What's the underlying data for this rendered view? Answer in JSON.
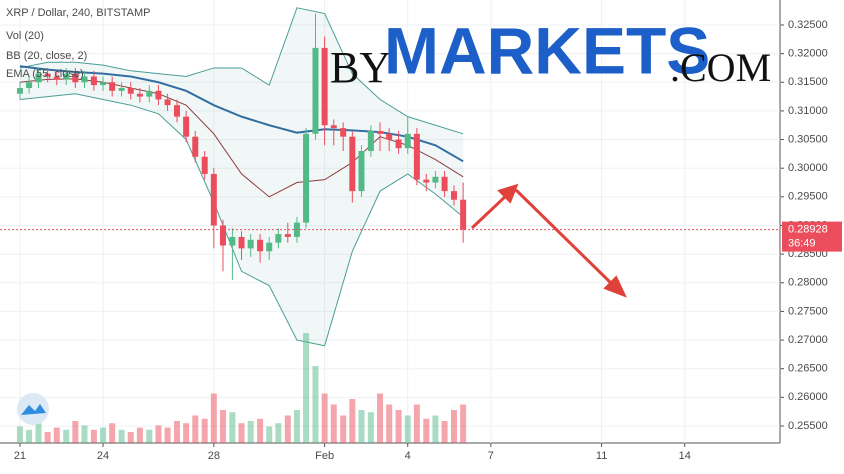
{
  "chart_data": {
    "type": "candlestick",
    "title": "XRP / Dollar, 240, BITSTAMP",
    "watermark": {
      "by": "BY",
      "name": "MARKETS",
      "domain": ".COM"
    },
    "xlim": [
      -0.72,
      27.44
    ],
    "xticks": [
      {
        "value": 0,
        "label": "21"
      },
      {
        "value": 3,
        "label": "24"
      },
      {
        "value": 7,
        "label": "28"
      },
      {
        "value": 11,
        "label": "Feb"
      },
      {
        "value": 14,
        "label": "4"
      },
      {
        "value": 17,
        "label": "7"
      },
      {
        "value": 21,
        "label": "11"
      },
      {
        "value": 24,
        "label": "14"
      }
    ],
    "ylim": [
      0.25203,
      0.32936
    ],
    "yticks": [
      {
        "value": 0.255,
        "label": "0.25500"
      },
      {
        "value": 0.26,
        "label": "0.26000"
      },
      {
        "value": 0.265,
        "label": "0.26500"
      },
      {
        "value": 0.27,
        "label": "0.27000"
      },
      {
        "value": 0.275,
        "label": "0.27500"
      },
      {
        "value": 0.28,
        "label": "0.28000"
      },
      {
        "value": 0.285,
        "label": "0.28500"
      },
      {
        "value": 0.29,
        "label": "0.29000"
      },
      {
        "value": 0.295,
        "label": "0.29500"
      },
      {
        "value": 0.3,
        "label": "0.30000"
      },
      {
        "value": 0.305,
        "label": "0.30500"
      },
      {
        "value": 0.31,
        "label": "0.31000"
      },
      {
        "value": 0.315,
        "label": "0.31500"
      },
      {
        "value": 0.32,
        "label": "0.32000"
      },
      {
        "value": 0.325,
        "label": "0.32500"
      }
    ],
    "grid": true,
    "up_color": "#53b987",
    "down_color": "#eb4d5c",
    "last_price": 0.28928,
    "countdown": "36:49",
    "candles": {
      "x": [
        0,
        0.33,
        0.67,
        1,
        1.33,
        1.67,
        2,
        2.33,
        2.67,
        3,
        3.33,
        3.67,
        4,
        4.33,
        4.67,
        5,
        5.33,
        5.67,
        6,
        6.33,
        6.67,
        7,
        7.33,
        7.67,
        8,
        8.33,
        8.67,
        9,
        9.33,
        9.67,
        10,
        10.33,
        10.67,
        11,
        11.33,
        11.67,
        12,
        12.33,
        12.67,
        13,
        13.33,
        13.67,
        14,
        14.33,
        14.67,
        15,
        15.33,
        15.67,
        16
      ],
      "open": [
        0.313,
        0.314,
        0.315,
        0.3165,
        0.316,
        0.3155,
        0.3165,
        0.315,
        0.316,
        0.3145,
        0.315,
        0.3135,
        0.314,
        0.313,
        0.3125,
        0.3135,
        0.312,
        0.311,
        0.309,
        0.3055,
        0.302,
        0.299,
        0.29,
        0.2865,
        0.288,
        0.286,
        0.2875,
        0.2855,
        0.287,
        0.2885,
        0.288,
        0.2905,
        0.306,
        0.321,
        0.3075,
        0.307,
        0.3055,
        0.296,
        0.303,
        0.3065,
        0.306,
        0.305,
        0.3035,
        0.306,
        0.298,
        0.2975,
        0.2985,
        0.296,
        0.2945
      ],
      "high": [
        0.315,
        0.316,
        0.3175,
        0.3175,
        0.317,
        0.3175,
        0.3175,
        0.317,
        0.317,
        0.316,
        0.316,
        0.315,
        0.315,
        0.314,
        0.3145,
        0.3145,
        0.313,
        0.312,
        0.31,
        0.3065,
        0.303,
        0.3,
        0.291,
        0.2895,
        0.289,
        0.2885,
        0.2885,
        0.288,
        0.2895,
        0.2905,
        0.2915,
        0.307,
        0.327,
        0.323,
        0.3085,
        0.308,
        0.3065,
        0.304,
        0.3075,
        0.308,
        0.307,
        0.3065,
        0.309,
        0.307,
        0.299,
        0.2995,
        0.2995,
        0.297,
        0.2975
      ],
      "low": [
        0.312,
        0.313,
        0.314,
        0.315,
        0.3145,
        0.3145,
        0.314,
        0.314,
        0.3135,
        0.3135,
        0.3125,
        0.3125,
        0.312,
        0.3115,
        0.3115,
        0.311,
        0.31,
        0.308,
        0.3045,
        0.301,
        0.298,
        0.286,
        0.282,
        0.2805,
        0.284,
        0.2845,
        0.2835,
        0.284,
        0.286,
        0.287,
        0.287,
        0.2895,
        0.305,
        0.304,
        0.304,
        0.303,
        0.294,
        0.295,
        0.302,
        0.303,
        0.303,
        0.3025,
        0.3025,
        0.297,
        0.296,
        0.2965,
        0.295,
        0.2935,
        0.287
      ],
      "close": [
        0.314,
        0.315,
        0.3165,
        0.316,
        0.3155,
        0.3165,
        0.315,
        0.316,
        0.3145,
        0.315,
        0.3135,
        0.314,
        0.313,
        0.3125,
        0.3135,
        0.312,
        0.311,
        0.309,
        0.3055,
        0.302,
        0.299,
        0.29,
        0.2865,
        0.288,
        0.286,
        0.2875,
        0.2855,
        0.287,
        0.2885,
        0.288,
        0.2905,
        0.306,
        0.321,
        0.3075,
        0.307,
        0.3055,
        0.296,
        0.303,
        0.3065,
        0.306,
        0.305,
        0.3035,
        0.306,
        0.298,
        0.2975,
        0.2985,
        0.296,
        0.2945,
        0.2893
      ]
    },
    "volume": {
      "name": "Vol (20)",
      "vlim": [
        0,
        100
      ],
      "values": [
        15,
        12,
        18,
        10,
        14,
        12,
        20,
        16,
        12,
        14,
        18,
        12,
        10,
        14,
        12,
        16,
        14,
        20,
        18,
        25,
        22,
        45,
        30,
        28,
        18,
        20,
        22,
        15,
        18,
        25,
        30,
        100,
        70,
        45,
        35,
        25,
        40,
        30,
        28,
        45,
        35,
        30,
        25,
        35,
        22,
        25,
        20,
        30,
        35
      ]
    },
    "bollinger": {
      "name": "BB (20, close, 2)",
      "color": "#4a9e96",
      "basis_color": "#8e3b3b",
      "x": [
        0,
        1,
        2,
        3,
        4,
        5,
        6,
        7,
        8,
        9,
        10,
        11,
        12,
        13,
        14,
        15,
        16
      ],
      "upper": [
        0.3175,
        0.3185,
        0.3185,
        0.318,
        0.317,
        0.3165,
        0.316,
        0.3175,
        0.3175,
        0.3145,
        0.328,
        0.327,
        0.3165,
        0.312,
        0.309,
        0.3075,
        0.306
      ],
      "basis": [
        0.315,
        0.3155,
        0.3156,
        0.315,
        0.314,
        0.313,
        0.311,
        0.306,
        0.299,
        0.295,
        0.2975,
        0.298,
        0.301,
        0.3055,
        0.304,
        0.3015,
        0.2985
      ],
      "lower": [
        0.312,
        0.3125,
        0.313,
        0.312,
        0.311,
        0.3095,
        0.305,
        0.294,
        0.282,
        0.2795,
        0.27,
        0.269,
        0.2855,
        0.296,
        0.299,
        0.2955,
        0.2915
      ]
    },
    "ema": {
      "name": "EMA (55, close)",
      "color": "#336ea3",
      "x": [
        0,
        1,
        2,
        3,
        4,
        5,
        6,
        7,
        8,
        9,
        10,
        11,
        12,
        13,
        14,
        15,
        16
      ],
      "values": [
        0.3178,
        0.3172,
        0.3168,
        0.3165,
        0.316,
        0.315,
        0.3135,
        0.311,
        0.309,
        0.3075,
        0.3062,
        0.3068,
        0.3066,
        0.3063,
        0.3055,
        0.304,
        0.3012
      ]
    }
  }
}
